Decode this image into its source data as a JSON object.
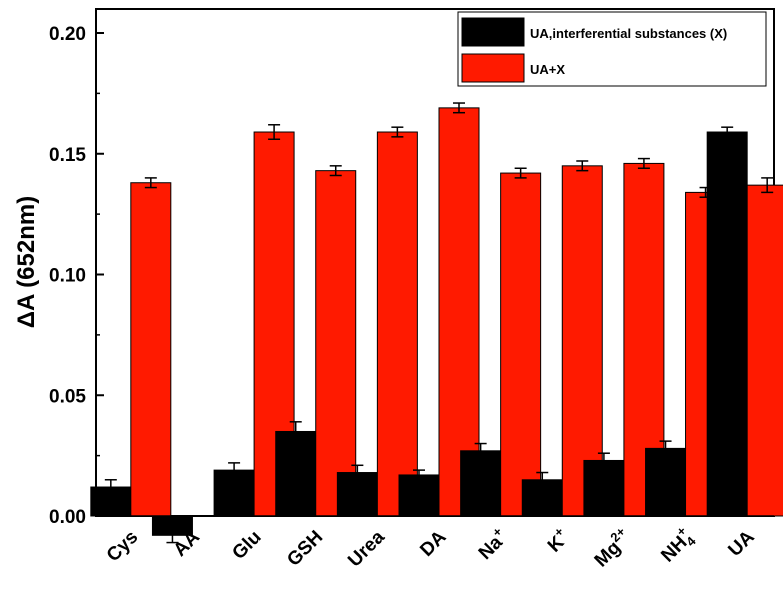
{
  "chart_data": {
    "type": "bar",
    "title": "",
    "xlabel": "",
    "ylabel": "ΔA (652nm)",
    "ylim": [
      0,
      0.21
    ],
    "yticks": [
      "0.00",
      "0.05",
      "0.10",
      "0.15",
      "0.20"
    ],
    "ytick_values": [
      0.0,
      0.05,
      0.1,
      0.15,
      0.2
    ],
    "legend_position": "top-right",
    "categories": [
      {
        "label": "Cys",
        "sup": "",
        "sub": ""
      },
      {
        "label": "AA",
        "sup": "",
        "sub": ""
      },
      {
        "label": "Glu",
        "sup": "",
        "sub": ""
      },
      {
        "label": "GSH",
        "sup": "",
        "sub": ""
      },
      {
        "label": "Urea",
        "sup": "",
        "sub": ""
      },
      {
        "label": "DA",
        "sup": "",
        "sub": ""
      },
      {
        "label": "Na",
        "sup": "+",
        "sub": ""
      },
      {
        "label": "K",
        "sup": "+",
        "sub": ""
      },
      {
        "label": "Mg",
        "sup": "2+",
        "sub": ""
      },
      {
        "label": "NH",
        "sup": "+",
        "sub": "4"
      },
      {
        "label": "UA",
        "sup": "",
        "sub": ""
      }
    ],
    "series": [
      {
        "name": "UA,interferential substances (X)",
        "color": "#000000",
        "values": [
          0.012,
          -0.008,
          0.019,
          0.035,
          0.018,
          0.017,
          0.027,
          0.015,
          0.023,
          0.028,
          0.159
        ],
        "errors": [
          0.003,
          0.003,
          0.003,
          0.004,
          0.003,
          0.002,
          0.003,
          0.003,
          0.003,
          0.003,
          0.002
        ]
      },
      {
        "name": "UA+X",
        "color": "#ff1a00",
        "values": [
          0.138,
          null,
          0.159,
          0.143,
          0.159,
          0.169,
          0.142,
          0.145,
          0.146,
          0.134,
          0.137
        ],
        "errors": [
          0.002,
          null,
          0.003,
          0.002,
          0.002,
          0.002,
          0.002,
          0.002,
          0.002,
          0.002,
          0.003
        ]
      }
    ]
  }
}
